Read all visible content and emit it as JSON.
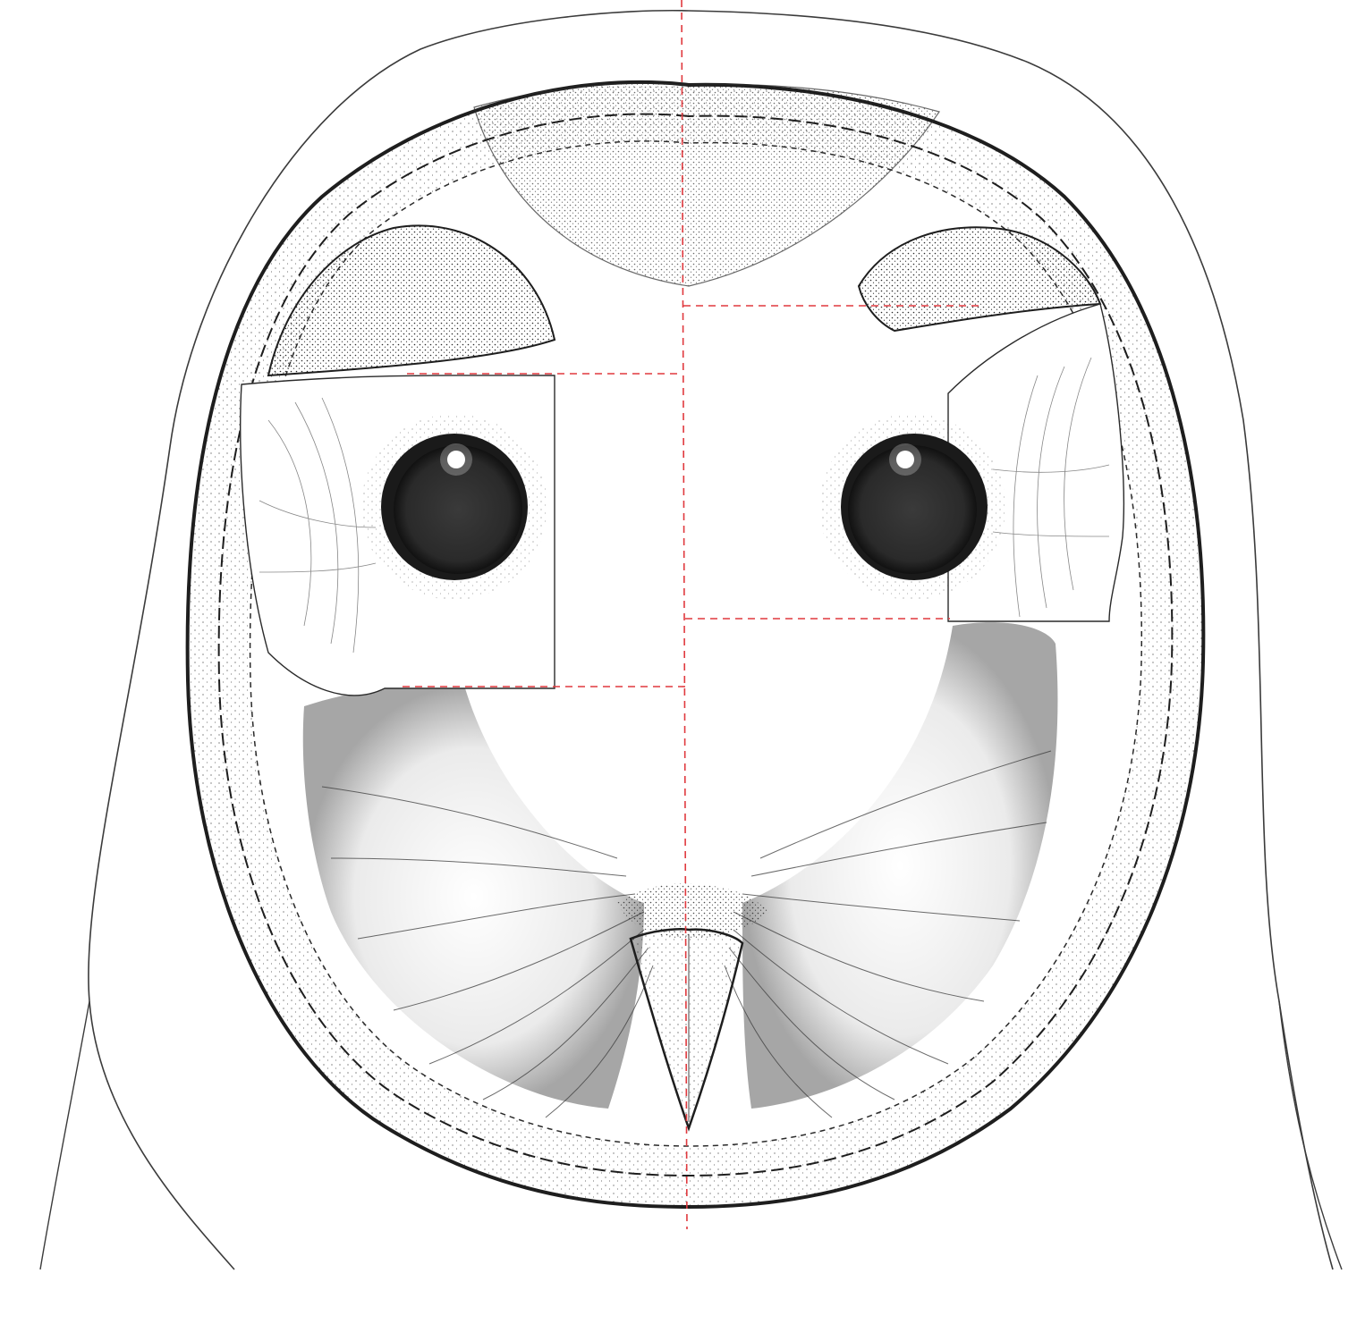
{
  "colors": {
    "background": "#ffffff",
    "ink": "#1e1e1e",
    "iris": "#262626",
    "guide": "#e0393e"
  },
  "subject": {
    "icon": "barn-owl-facial-disc-icon"
  }
}
